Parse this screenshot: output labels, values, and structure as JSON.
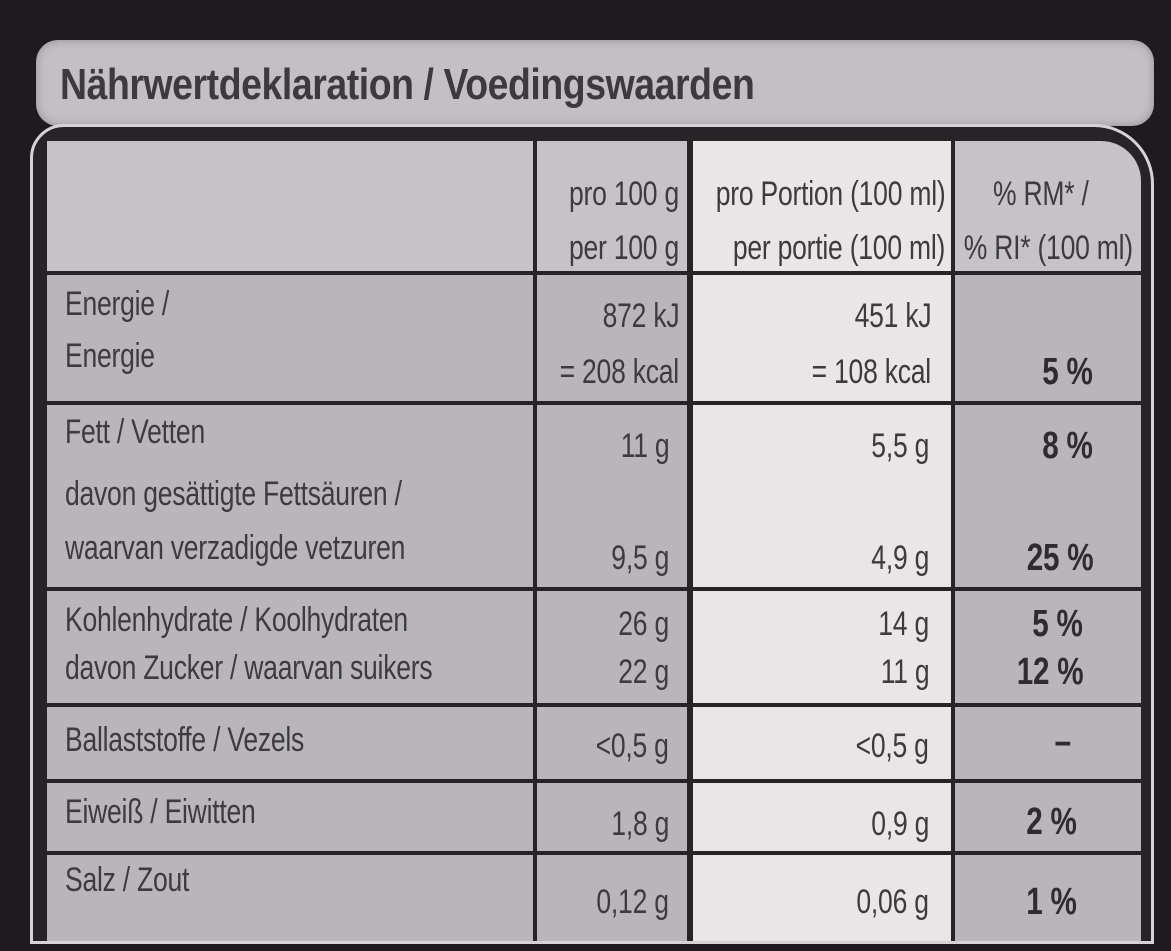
{
  "title": "Nährwertdeklaration / Voedingswaarden",
  "header": {
    "col1_line1": "pro 100 g",
    "col1_line2": "per 100 g",
    "col2_line1": "pro Portion (100 ml)",
    "col2_line2": "per portie (100 ml)",
    "col3_line1": "% RM* /",
    "col3_line2": "% RI* (100 ml)"
  },
  "rows": [
    {
      "label1": "Energie /",
      "label2": "Energie",
      "v100_1": "872 kJ",
      "v100_2": "= 208 kcal",
      "vp_1": "451 kJ",
      "vp_2": "= 108 kcal",
      "ri": "5 %"
    },
    {
      "label1": "Fett / Vetten",
      "label2": "davon gesättigte Fettsäuren /",
      "label3": "waarvan verzadigde vetzuren",
      "v100_1": "11 g",
      "v100_2": "9,5 g",
      "vp_1": "5,5 g",
      "vp_2": "4,9 g",
      "ri_1": "8 %",
      "ri_2": "25 %"
    },
    {
      "label1": "Kohlenhydrate / Koolhydraten",
      "label2": "davon Zucker / waarvan suikers",
      "v100_1": "26 g",
      "v100_2": "22 g",
      "vp_1": "14 g",
      "vp_2": "11 g",
      "ri_1": "5 %",
      "ri_2": "12 %"
    },
    {
      "label1": "Ballaststoffe / Vezels",
      "v100": "<0,5 g",
      "vp": "<0,5 g",
      "ri": "–"
    },
    {
      "label1": "Eiweiß / Eiwitten",
      "v100": "1,8 g",
      "vp": "0,9 g",
      "ri": "2 %"
    },
    {
      "label1": "Salz / Zout",
      "v100": "0,12 g",
      "vp": "0,06 g",
      "ri": "1 %"
    }
  ],
  "colors": {
    "background": "#1d1b1e",
    "gray_cell": "#b9b6b9",
    "light_cell": "#e9e6e8",
    "text": "#3d3b3e"
  }
}
